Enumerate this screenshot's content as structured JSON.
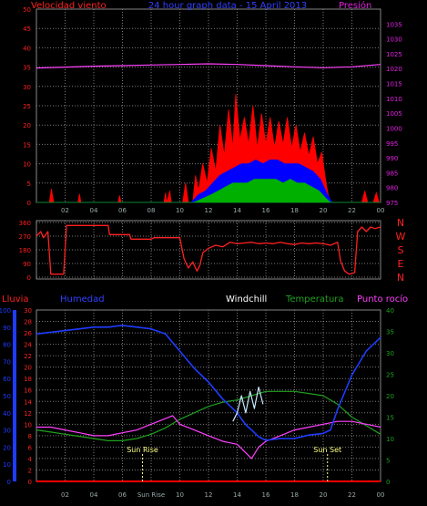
{
  "colors": {
    "background": "#000000",
    "grid": "#7a7a7a",
    "axis_wind": "#ff2020",
    "axis_pressure": "#e020e0",
    "wind_speed": "#ff0000",
    "wind_avg": "#0000ff",
    "wind_green": "#00b000",
    "pressure_line": "#ff40ff",
    "direction": "#ff2020",
    "humidity": "#1e3cff",
    "windchill": "#c8e8ff",
    "temperature": "#20a020",
    "dew_point": "#ff40ff",
    "rain": "#ff0000",
    "sun_marker": "#ffff80"
  },
  "chart_data": [
    {
      "type": "line",
      "name": "wind",
      "title": "24 hour graph data - 15 April 2013",
      "ylabel_left": "Velocidad viento",
      "ylabel_right": "Presión",
      "x_ticks": [
        "02",
        "04",
        "06",
        "08",
        "10",
        "12",
        "14",
        "16",
        "18",
        "20",
        "22",
        "00"
      ],
      "x_range": [
        0,
        24
      ],
      "ylim_left": [
        0,
        50
      ],
      "ylim_right": [
        975,
        1040
      ],
      "y_ticks_left": [
        0,
        5,
        10,
        15,
        20,
        25,
        30,
        35,
        40,
        45,
        50
      ],
      "y_ticks_right": [
        975,
        980,
        985,
        990,
        995,
        1000,
        1005,
        1010,
        1015,
        1020,
        1025,
        1030,
        1035
      ],
      "gusts": [
        [
          0,
          0
        ],
        [
          0.9,
          0
        ],
        [
          1.05,
          3.5
        ],
        [
          1.2,
          0
        ],
        [
          2.9,
          0
        ],
        [
          3.0,
          2.2
        ],
        [
          3.1,
          0
        ],
        [
          5.7,
          0
        ],
        [
          5.8,
          1.8
        ],
        [
          5.9,
          0
        ],
        [
          8.9,
          0
        ],
        [
          9.0,
          2.5
        ],
        [
          9.1,
          0
        ],
        [
          9.3,
          3
        ],
        [
          9.4,
          0
        ],
        [
          10.2,
          0
        ],
        [
          10.4,
          5
        ],
        [
          10.6,
          0
        ],
        [
          10.9,
          0
        ],
        [
          11.1,
          7
        ],
        [
          11.3,
          3
        ],
        [
          11.6,
          10
        ],
        [
          11.9,
          5
        ],
        [
          12.2,
          14
        ],
        [
          12.5,
          8
        ],
        [
          12.8,
          20
        ],
        [
          13.1,
          12
        ],
        [
          13.4,
          24
        ],
        [
          13.7,
          14
        ],
        [
          13.9,
          28
        ],
        [
          14.2,
          16
        ],
        [
          14.5,
          22
        ],
        [
          14.8,
          15
        ],
        [
          15.1,
          25
        ],
        [
          15.4,
          14
        ],
        [
          15.7,
          23
        ],
        [
          16.0,
          15
        ],
        [
          16.3,
          22
        ],
        [
          16.6,
          14
        ],
        [
          16.9,
          21
        ],
        [
          17.2,
          15
        ],
        [
          17.5,
          22
        ],
        [
          17.8,
          14
        ],
        [
          18.1,
          20
        ],
        [
          18.4,
          13
        ],
        [
          18.7,
          18
        ],
        [
          19.0,
          12
        ],
        [
          19.3,
          17
        ],
        [
          19.6,
          10
        ],
        [
          19.9,
          13
        ],
        [
          20.2,
          5
        ],
        [
          20.4,
          1
        ],
        [
          20.6,
          0
        ],
        [
          22.7,
          0
        ],
        [
          22.9,
          3
        ],
        [
          23.1,
          0
        ],
        [
          23.5,
          0
        ],
        [
          23.7,
          2.5
        ],
        [
          23.9,
          0
        ]
      ],
      "average": [
        [
          0,
          0
        ],
        [
          10.8,
          0
        ],
        [
          11.3,
          2
        ],
        [
          11.8,
          3
        ],
        [
          12.3,
          5
        ],
        [
          12.8,
          7
        ],
        [
          13.3,
          8
        ],
        [
          13.8,
          9
        ],
        [
          14.3,
          10
        ],
        [
          14.8,
          10
        ],
        [
          15.3,
          11
        ],
        [
          15.8,
          10
        ],
        [
          16.3,
          11
        ],
        [
          16.8,
          11
        ],
        [
          17.3,
          10
        ],
        [
          17.8,
          10
        ],
        [
          18.3,
          10
        ],
        [
          18.8,
          9
        ],
        [
          19.3,
          8
        ],
        [
          19.8,
          6
        ],
        [
          20.3,
          2
        ],
        [
          20.6,
          0
        ],
        [
          24,
          0
        ]
      ],
      "green": [
        [
          0,
          0
        ],
        [
          11.0,
          0
        ],
        [
          11.6,
          1
        ],
        [
          12.2,
          2
        ],
        [
          12.7,
          3
        ],
        [
          13.2,
          4
        ],
        [
          13.7,
          5
        ],
        [
          14.2,
          5
        ],
        [
          14.7,
          5
        ],
        [
          15.2,
          6
        ],
        [
          15.7,
          6
        ],
        [
          16.2,
          6
        ],
        [
          16.7,
          6
        ],
        [
          17.2,
          5
        ],
        [
          17.7,
          6
        ],
        [
          18.2,
          5
        ],
        [
          18.7,
          5
        ],
        [
          19.2,
          4
        ],
        [
          19.7,
          3
        ],
        [
          20.2,
          1
        ],
        [
          20.5,
          0
        ],
        [
          24,
          0
        ]
      ],
      "pressure": [
        [
          0,
          1020.2
        ],
        [
          2,
          1020.5
        ],
        [
          4,
          1020.8
        ],
        [
          6,
          1021.0
        ],
        [
          8,
          1021.2
        ],
        [
          10,
          1021.4
        ],
        [
          12,
          1021.6
        ],
        [
          14,
          1021.4
        ],
        [
          16,
          1021.0
        ],
        [
          18,
          1020.6
        ],
        [
          20,
          1020.3
        ],
        [
          22,
          1020.6
        ],
        [
          24,
          1021.4
        ]
      ]
    },
    {
      "type": "line",
      "name": "direction",
      "ylim": [
        0,
        360
      ],
      "y_ticks": [
        0,
        90,
        180,
        270,
        360
      ],
      "compass_labels": [
        "N",
        "W",
        "S",
        "E",
        "N"
      ],
      "values": [
        [
          0,
          270
        ],
        [
          0.3,
          300
        ],
        [
          0.5,
          260
        ],
        [
          0.8,
          300
        ],
        [
          1.0,
          20
        ],
        [
          1.3,
          20
        ],
        [
          1.6,
          20
        ],
        [
          1.9,
          20
        ],
        [
          2.1,
          340
        ],
        [
          5.0,
          340
        ],
        [
          5.1,
          280
        ],
        [
          6.5,
          280
        ],
        [
          6.6,
          250
        ],
        [
          8.0,
          250
        ],
        [
          8.2,
          260
        ],
        [
          10.0,
          260
        ],
        [
          10.3,
          120
        ],
        [
          10.6,
          60
        ],
        [
          10.9,
          100
        ],
        [
          11.2,
          40
        ],
        [
          11.4,
          80
        ],
        [
          11.6,
          160
        ],
        [
          12.0,
          190
        ],
        [
          12.5,
          210
        ],
        [
          13.0,
          200
        ],
        [
          13.5,
          230
        ],
        [
          14.0,
          220
        ],
        [
          14.5,
          225
        ],
        [
          15.0,
          230
        ],
        [
          15.5,
          220
        ],
        [
          16.0,
          225
        ],
        [
          16.5,
          220
        ],
        [
          17.0,
          230
        ],
        [
          17.5,
          220
        ],
        [
          18.0,
          215
        ],
        [
          18.5,
          225
        ],
        [
          19.0,
          220
        ],
        [
          19.5,
          225
        ],
        [
          20.0,
          220
        ],
        [
          20.5,
          210
        ],
        [
          21.0,
          230
        ],
        [
          21.2,
          110
        ],
        [
          21.5,
          40
        ],
        [
          21.8,
          20
        ],
        [
          22.2,
          30
        ],
        [
          22.4,
          300
        ],
        [
          22.7,
          330
        ],
        [
          23.0,
          300
        ],
        [
          23.3,
          330
        ],
        [
          23.6,
          320
        ],
        [
          24,
          330
        ]
      ]
    },
    {
      "type": "line",
      "name": "temperature",
      "series_labels": [
        "Lluvia",
        "Humedad",
        "Windchill",
        "Temperatura",
        "Punto rocío"
      ],
      "ylim_left": [
        0,
        30
      ],
      "ylim_left_outer": [
        0,
        100
      ],
      "ylim_right": [
        0,
        40
      ],
      "y_ticks_left": [
        0,
        2,
        4,
        6,
        8,
        10,
        12,
        14,
        16,
        18,
        20,
        22,
        24,
        26,
        28,
        30
      ],
      "y_ticks_left_outer": [
        0,
        10,
        20,
        30,
        40,
        50,
        60,
        70,
        80,
        90,
        100
      ],
      "y_ticks_right": [
        0,
        5,
        10,
        15,
        20,
        25,
        30,
        35,
        40
      ],
      "x_ticks": [
        "02",
        "04",
        "06",
        "Sun Rise",
        "10",
        "12",
        "14",
        "16",
        "18",
        "20",
        "22",
        "00"
      ],
      "sun_rise_label": "Sun Rise",
      "sun_set_label": "Sun Set",
      "sun_rise_x": 7.4,
      "sun_set_x": 20.3,
      "humidity": [
        [
          0,
          86
        ],
        [
          1,
          87
        ],
        [
          2,
          88
        ],
        [
          3,
          89
        ],
        [
          4,
          90
        ],
        [
          5,
          90
        ],
        [
          6,
          91
        ],
        [
          7,
          90
        ],
        [
          8,
          89
        ],
        [
          9,
          86
        ],
        [
          10,
          76
        ],
        [
          11,
          66
        ],
        [
          12,
          58
        ],
        [
          13,
          48
        ],
        [
          14,
          40
        ],
        [
          14.6,
          33
        ],
        [
          15.0,
          30
        ],
        [
          15.5,
          26
        ],
        [
          16,
          24
        ],
        [
          17,
          25
        ],
        [
          18,
          25
        ],
        [
          19,
          27
        ],
        [
          20,
          28
        ],
        [
          20.5,
          30
        ],
        [
          21,
          42
        ],
        [
          22,
          62
        ],
        [
          23,
          76
        ],
        [
          24,
          84
        ]
      ],
      "windchill": [
        [
          13.7,
          14
        ],
        [
          14.0,
          16
        ],
        [
          14.3,
          20
        ],
        [
          14.6,
          16
        ],
        [
          14.9,
          21
        ],
        [
          15.2,
          17
        ],
        [
          15.5,
          22
        ],
        [
          15.8,
          18
        ]
      ],
      "temperature": [
        [
          0,
          12
        ],
        [
          1,
          11.5
        ],
        [
          2,
          11
        ],
        [
          3,
          10.5
        ],
        [
          4,
          10
        ],
        [
          5,
          9.5
        ],
        [
          6,
          9.5
        ],
        [
          7,
          10
        ],
        [
          8,
          11
        ],
        [
          9,
          12.5
        ],
        [
          10,
          14.5
        ],
        [
          11,
          16
        ],
        [
          12,
          17.5
        ],
        [
          13,
          18.5
        ],
        [
          14,
          19
        ],
        [
          15,
          20
        ],
        [
          16,
          21
        ],
        [
          17,
          21
        ],
        [
          18,
          21
        ],
        [
          19,
          20.5
        ],
        [
          20,
          20
        ],
        [
          21,
          18
        ],
        [
          22,
          15
        ],
        [
          23,
          13
        ],
        [
          24,
          11
        ]
      ],
      "dew_point": [
        [
          0,
          9.5
        ],
        [
          1,
          9.5
        ],
        [
          2,
          9
        ],
        [
          3,
          8.5
        ],
        [
          4,
          8
        ],
        [
          5,
          8
        ],
        [
          6,
          8.5
        ],
        [
          7,
          9
        ],
        [
          8,
          10
        ],
        [
          9,
          11
        ],
        [
          9.5,
          11.5
        ],
        [
          10,
          10
        ],
        [
          11,
          9
        ],
        [
          12,
          8
        ],
        [
          13,
          7
        ],
        [
          14,
          6.5
        ],
        [
          15,
          4
        ],
        [
          15.5,
          6
        ],
        [
          16,
          7
        ],
        [
          17,
          8
        ],
        [
          18,
          9
        ],
        [
          19,
          9.5
        ],
        [
          20,
          10
        ],
        [
          21,
          10.5
        ],
        [
          22,
          10.5
        ],
        [
          23,
          10
        ],
        [
          24,
          9.5
        ]
      ],
      "rain": [
        [
          0,
          0
        ],
        [
          24,
          0
        ]
      ]
    }
  ]
}
